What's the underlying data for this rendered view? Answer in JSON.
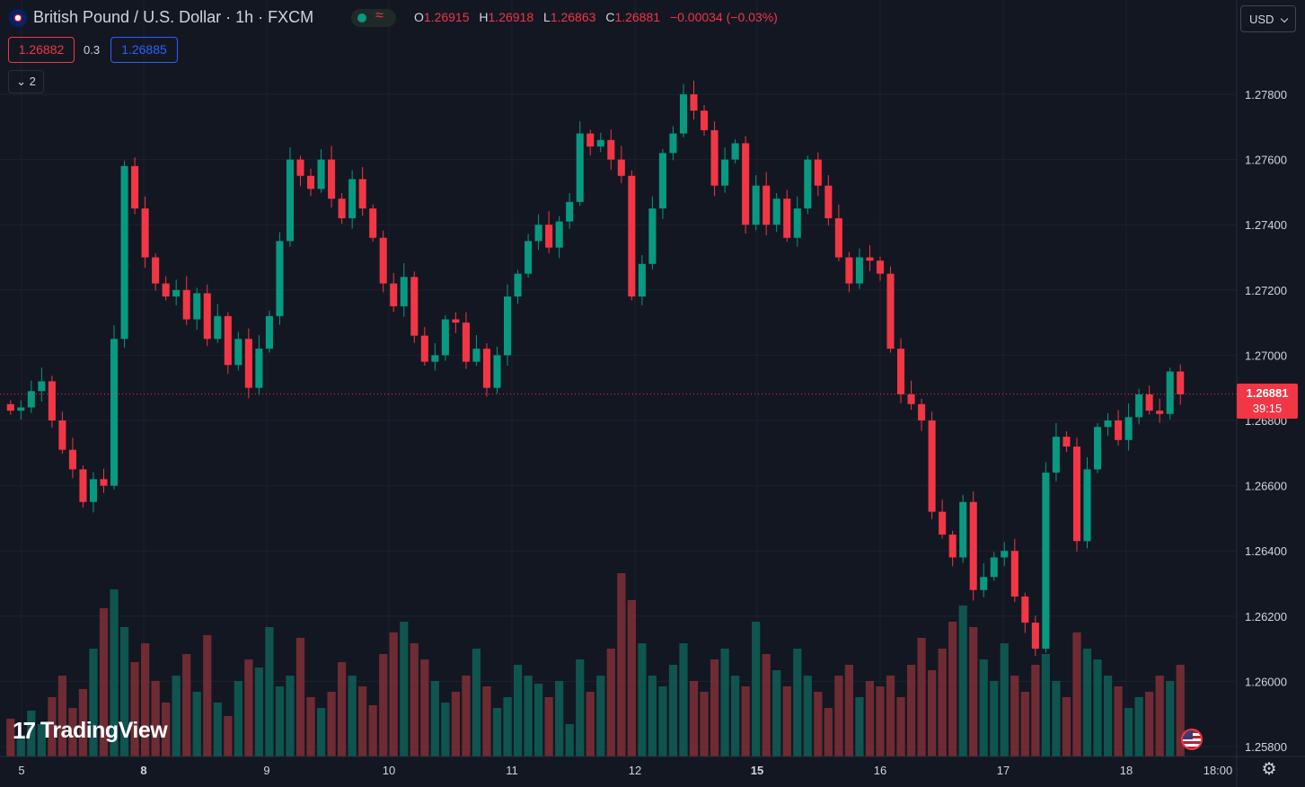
{
  "header": {
    "symbol_title": "British Pound / U.S. Dollar · 1h · FXCM",
    "status_icon": "market-open-icon",
    "ohlc": {
      "o_label": "O",
      "o_value": "1.26915",
      "h_label": "H",
      "h_value": "1.26918",
      "l_label": "L",
      "l_value": "1.26863",
      "c_label": "C",
      "c_value": "1.26881",
      "change": "−0.00034 (−0.03%)"
    }
  },
  "trade": {
    "sell_price": "1.26882",
    "spread": "0.3",
    "buy_price": "1.26885",
    "indicators_count": "2"
  },
  "currency_selector": "USD",
  "last_price": {
    "value": "1.26881",
    "countdown": "39:15"
  },
  "branding": {
    "logo_text": "TradingView"
  },
  "colors": {
    "up": "#089981",
    "down": "#f23645",
    "background": "#131722",
    "grid": "#1e222d",
    "buy": "#2962ff"
  },
  "chart_data": {
    "type": "candlestick",
    "timeframe": "1h",
    "y_axis": {
      "ticks": [
        "1.27800",
        "1.27600",
        "1.27400",
        "1.27200",
        "1.27000",
        "1.26800",
        "1.26600",
        "1.26400",
        "1.26200",
        "1.26000",
        "1.25800"
      ],
      "range": [
        1.2575,
        1.2805
      ]
    },
    "x_axis": {
      "ticks": [
        "5",
        "8",
        "9",
        "10",
        "11",
        "12",
        "15",
        "16",
        "17",
        "18",
        "18:00"
      ]
    },
    "last_close": 1.26881,
    "series": [
      {
        "name": "price_path",
        "values": [
          1.2683,
          1.2684,
          1.2689,
          1.2692,
          1.268,
          1.2671,
          1.2665,
          1.2655,
          1.2662,
          1.266,
          1.2705,
          1.2758,
          1.2745,
          1.273,
          1.2722,
          1.2718,
          1.272,
          1.2711,
          1.2719,
          1.2705,
          1.2712,
          1.2697,
          1.2705,
          1.269,
          1.2702,
          1.2712,
          1.2735,
          1.276,
          1.2755,
          1.2751,
          1.276,
          1.2748,
          1.2742,
          1.2754,
          1.2745,
          1.2736,
          1.2722,
          1.2715,
          1.2724,
          1.2706,
          1.2698,
          1.27,
          1.2711,
          1.271,
          1.2698,
          1.2702,
          1.269,
          1.27,
          1.2718,
          1.2725,
          1.2735,
          1.274,
          1.2733,
          1.2741,
          1.2747,
          1.2768,
          1.2764,
          1.2766,
          1.276,
          1.2755,
          1.2718,
          1.2728,
          1.2745,
          1.2762,
          1.2768,
          1.278,
          1.2775,
          1.2769,
          1.2752,
          1.276,
          1.2765,
          1.274,
          1.2752,
          1.274,
          1.2748,
          1.2736,
          1.2745,
          1.276,
          1.2752,
          1.2742,
          1.273,
          1.2722,
          1.273,
          1.2729,
          1.2725,
          1.2702,
          1.2688,
          1.2685,
          1.268,
          1.2652,
          1.2645,
          1.2638,
          1.2655,
          1.2628,
          1.2632,
          1.2638,
          1.264,
          1.2626,
          1.2618,
          1.261,
          1.2664,
          1.2675,
          1.2672,
          1.2643,
          1.2665,
          1.2678,
          1.268,
          1.2674,
          1.2681,
          1.2688,
          1.2683,
          1.2682,
          1.2695,
          1.2688
        ]
      },
      {
        "name": "volume",
        "values": [
          14,
          8,
          17,
          12,
          22,
          30,
          18,
          25,
          40,
          55,
          62,
          48,
          35,
          42,
          28,
          20,
          30,
          38,
          24,
          45,
          20,
          15,
          28,
          36,
          33,
          48,
          26,
          30,
          44,
          22,
          18,
          24,
          35,
          30,
          26,
          19,
          38,
          46,
          50,
          42,
          36,
          28,
          20,
          24,
          30,
          40,
          26,
          18,
          22,
          34,
          30,
          27,
          22,
          28,
          12,
          36,
          24,
          30,
          40,
          68,
          58,
          42,
          30,
          26,
          34,
          42,
          28,
          24,
          36,
          40,
          30,
          26,
          50,
          38,
          32,
          26,
          40,
          30,
          24,
          18,
          30,
          34,
          22,
          28,
          26,
          30,
          22,
          34,
          44,
          32,
          40,
          50,
          56,
          48,
          36,
          28,
          42,
          30,
          24,
          34,
          38,
          28,
          22,
          46,
          40,
          36,
          30,
          26,
          18,
          22,
          24,
          30,
          28,
          34
        ]
      }
    ]
  }
}
